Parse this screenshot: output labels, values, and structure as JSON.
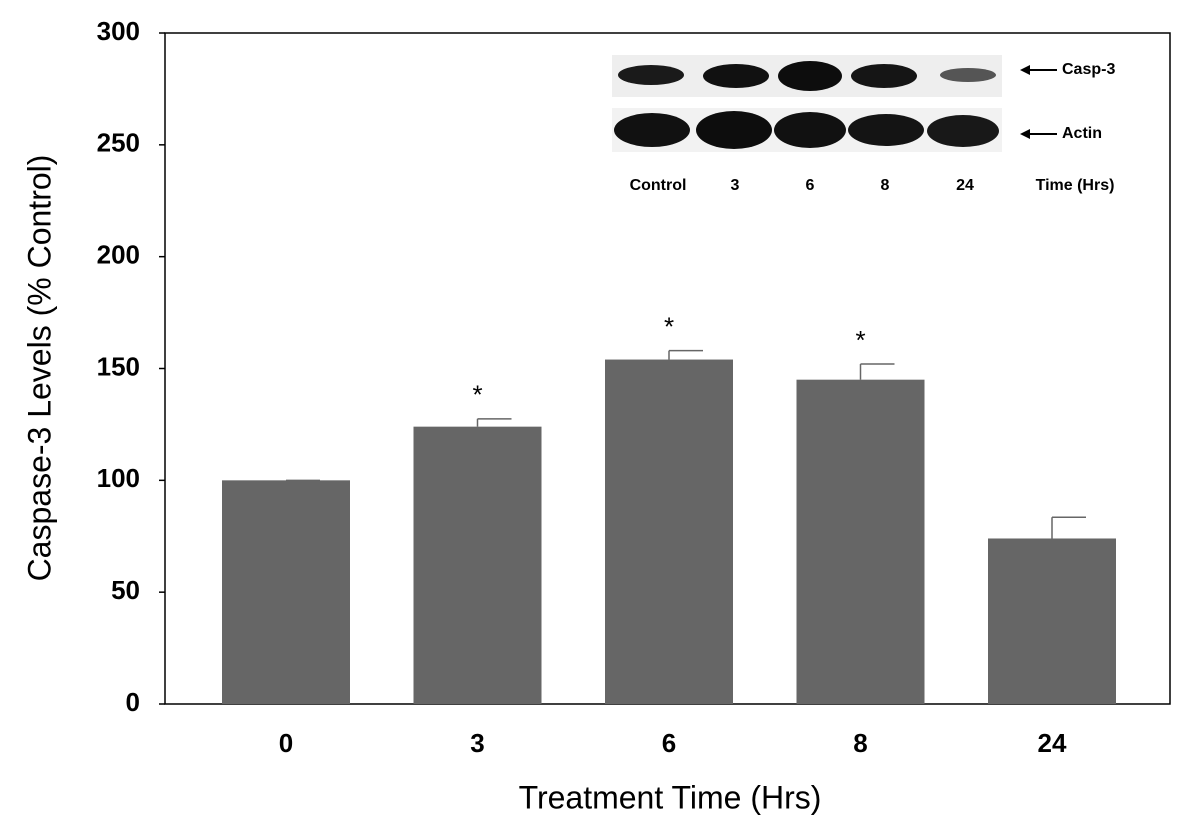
{
  "chart_data": {
    "type": "bar",
    "x_label": "Treatment Time (Hrs)",
    "y_label": "Caspase-3 Levels (% Control)",
    "categories": [
      "0",
      "3",
      "6",
      "8",
      "24"
    ],
    "values": [
      100,
      124,
      154,
      145,
      74
    ],
    "errors": [
      0,
      3.5,
      4,
      7,
      9.5
    ],
    "color": "#666666",
    "ylim": [
      0,
      300
    ],
    "yticks": [
      0,
      50,
      100,
      150,
      200,
      250,
      300
    ],
    "annotations": [
      {
        "x": "3",
        "text": "*"
      },
      {
        "x": "6",
        "text": "*"
      },
      {
        "x": "8",
        "text": "*"
      }
    ],
    "inset": {
      "bands": [
        "Casp-3",
        "Actin"
      ],
      "lanes": [
        "Control",
        "3",
        "6",
        "8",
        "24"
      ],
      "lane_title": "Time (Hrs)"
    }
  }
}
